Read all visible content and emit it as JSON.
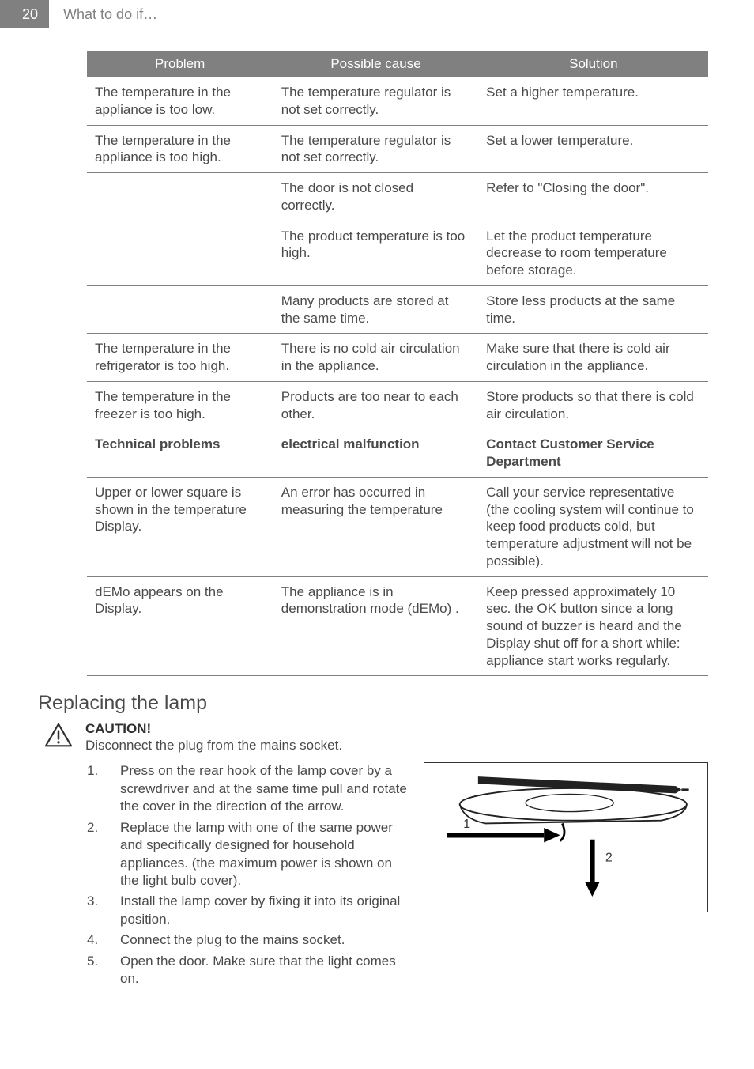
{
  "page": {
    "number": "20",
    "title": "What to do if…"
  },
  "table": {
    "headers": [
      "Problem",
      "Possible cause",
      "Solution"
    ],
    "rows": [
      {
        "problem": "The temperature in the appliance is too low.",
        "cause": "The temperature regulator is not set correctly.",
        "solution": "Set a higher temperature.",
        "bold": false
      },
      {
        "problem": "The temperature in the appliance is too high.",
        "cause": "The temperature regulator is not set correctly.",
        "solution": "Set a lower temperature.",
        "bold": false
      },
      {
        "problem": "",
        "cause": "The door is not closed correctly.",
        "solution": "Refer to \"Closing the door\".",
        "bold": false
      },
      {
        "problem": "",
        "cause": "The product temperature is too high.",
        "solution": "Let the product temperature decrease to room temperature before storage.",
        "bold": false
      },
      {
        "problem": "",
        "cause": "Many products are stored at the same time.",
        "solution": "Store less products at the same time.",
        "bold": false
      },
      {
        "problem": "The temperature in the refrigerator is too high.",
        "cause": "There is no cold air circulation in the appliance.",
        "solution": "Make sure that there is cold air circulation in the appliance.",
        "bold": false
      },
      {
        "problem": "The temperature in the freezer is too high.",
        "cause": "Products are too near to each other.",
        "solution": "Store products so that there is cold air circulation.",
        "bold": false
      },
      {
        "problem": "Technical problems",
        "cause": "electrical malfunction",
        "solution": "Contact Customer Service Department",
        "bold": true
      },
      {
        "problem": "Upper or lower square is shown in the temperature Display.",
        "cause": "An error has occurred in measuring the temperature",
        "solution": "Call your service representative (the cooling system will continue to keep food products cold, but temperature adjustment will not be possible).",
        "bold": false
      },
      {
        "problem": "dEMo appears on the Display.",
        "cause": "The appliance is in demonstration mode (dEMo) .",
        "solution": "Keep pressed approximately 10 sec. the OK button since a long sound of buzzer is heard and the Display shut off for a short while: appliance start works regularly.",
        "bold": false
      }
    ]
  },
  "section": {
    "title": "Replacing the lamp",
    "caution_label": "CAUTION!",
    "caution_body": "Disconnect the plug from the mains socket.",
    "steps": [
      "Press on the rear hook of the lamp cover by a screwdriver and at the same time pull and rotate the cover in the direction of the arrow.",
      "Replace the lamp with one of the same power and specifically designed for household appliances. (the maximum power is shown on the light bulb cover).",
      "Install the lamp cover by fixing it into its original position.",
      "Connect the plug to the mains socket.",
      "Open the door. Make sure that the light comes on."
    ]
  },
  "diagram": {
    "label1": "1",
    "label2": "2"
  },
  "colors": {
    "header_bg": "#808080",
    "header_text": "#ffffff",
    "body_text": "#4a4a4a",
    "rule": "#808080",
    "background": "#ffffff"
  }
}
